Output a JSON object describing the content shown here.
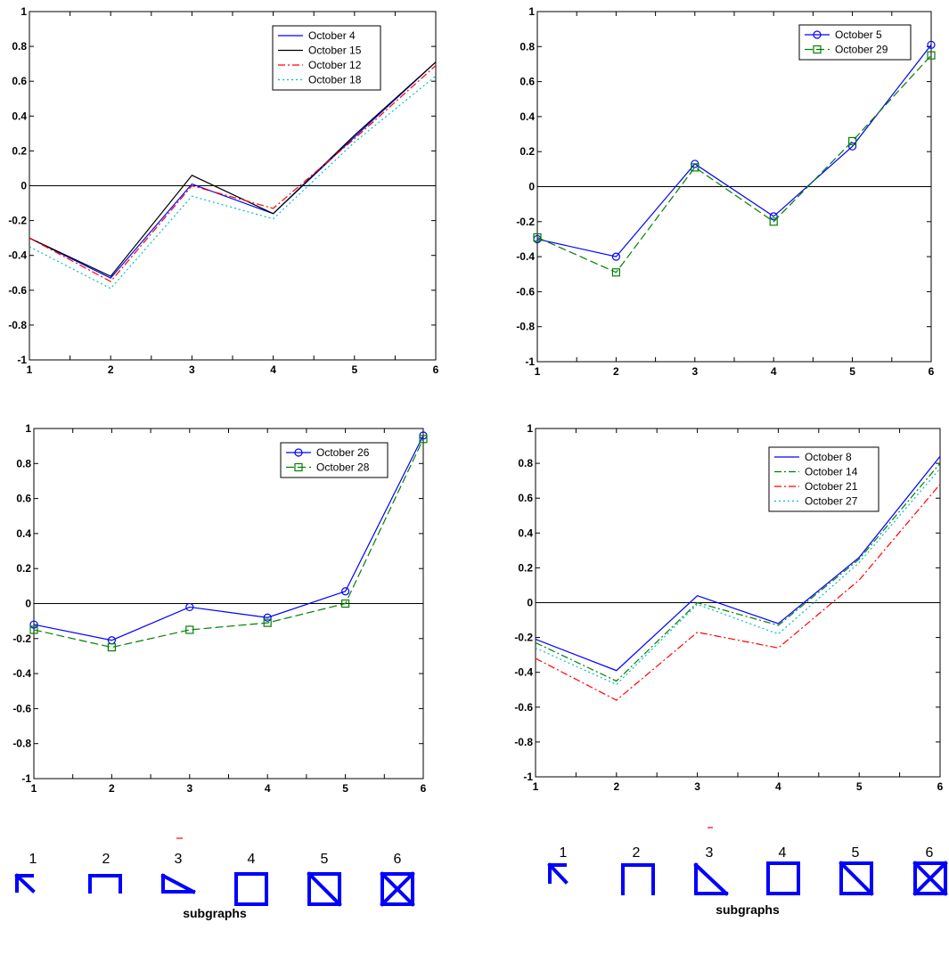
{
  "chart_data": [
    {
      "type": "line",
      "x": [
        1,
        2,
        3,
        4,
        5,
        6
      ],
      "xlim": [
        1,
        6
      ],
      "ylim": [
        -1,
        1
      ],
      "yticks": [
        "1",
        "0.8",
        "0.6",
        "0.4",
        "0.2",
        "0",
        "-0.2",
        "-0.4",
        "-0.6",
        "-0.8",
        "-1"
      ],
      "xticks": [
        "1",
        "2",
        "3",
        "4",
        "5",
        "6"
      ],
      "zero_line": true,
      "legend_position": "top-right",
      "series": [
        {
          "name": "October 4",
          "values": [
            -0.3,
            -0.53,
            0.01,
            -0.16,
            0.28,
            0.71
          ],
          "color": "#0000ff",
          "style": "solid",
          "marker": "none"
        },
        {
          "name": "October 15",
          "values": [
            -0.3,
            -0.52,
            0.06,
            -0.16,
            0.29,
            0.71
          ],
          "color": "#000000",
          "style": "solid",
          "marker": "none"
        },
        {
          "name": "October 12",
          "values": [
            -0.3,
            -0.55,
            0.0,
            -0.13,
            0.27,
            0.69
          ],
          "color": "#ff0000",
          "style": "dashdot",
          "marker": "none"
        },
        {
          "name": "October 18",
          "values": [
            -0.35,
            -0.59,
            -0.06,
            -0.19,
            0.25,
            0.63
          ],
          "color": "#00bfbf",
          "style": "dotted",
          "marker": "none"
        }
      ]
    },
    {
      "type": "line",
      "x": [
        1,
        2,
        3,
        4,
        5,
        6
      ],
      "xlim": [
        1,
        6
      ],
      "ylim": [
        -1,
        1
      ],
      "yticks": [
        "1",
        "0.8",
        "0.6",
        "0.4",
        "0.2",
        "0",
        "-0.2",
        "-0.4",
        "-0.6",
        "-0.8",
        "-1"
      ],
      "xticks": [
        "1",
        "2",
        "3",
        "4",
        "5",
        "6"
      ],
      "zero_line": true,
      "legend_position": "top-right",
      "series": [
        {
          "name": "October 5",
          "values": [
            -0.3,
            -0.4,
            0.13,
            -0.17,
            0.23,
            0.81
          ],
          "color": "#0000ff",
          "style": "solid",
          "marker": "circle"
        },
        {
          "name": "October 29",
          "values": [
            -0.29,
            -0.49,
            0.11,
            -0.2,
            0.26,
            0.75
          ],
          "color": "#008000",
          "style": "dashed",
          "marker": "square"
        }
      ]
    },
    {
      "type": "line",
      "x": [
        1,
        2,
        3,
        4,
        5,
        6
      ],
      "xlim": [
        1,
        6
      ],
      "ylim": [
        -1,
        1
      ],
      "yticks": [
        "1",
        "0.8",
        "0.6",
        "0.4",
        "0.2",
        "0",
        "-0.2",
        "-0.4",
        "-0.6",
        "-0.8",
        "-1"
      ],
      "xticks": [
        "1",
        "2",
        "3",
        "4",
        "5",
        "6"
      ],
      "zero_line": true,
      "legend_position": "top-right",
      "series": [
        {
          "name": "October 26",
          "values": [
            -0.12,
            -0.21,
            -0.02,
            -0.08,
            0.07,
            0.96
          ],
          "color": "#0000ff",
          "style": "solid",
          "marker": "circle"
        },
        {
          "name": "October 28",
          "values": [
            -0.15,
            -0.25,
            -0.15,
            -0.11,
            0.0,
            0.94
          ],
          "color": "#008000",
          "style": "dashed",
          "marker": "square"
        }
      ]
    },
    {
      "type": "line",
      "x": [
        1,
        2,
        3,
        4,
        5,
        6
      ],
      "xlim": [
        1,
        6
      ],
      "ylim": [
        -1,
        1
      ],
      "yticks": [
        "1",
        "0.8",
        "0.6",
        "0.4",
        "0.2",
        "0",
        "-0.2",
        "-0.4",
        "-0.6",
        "-0.8",
        "-1"
      ],
      "xticks": [
        "1",
        "2",
        "3",
        "4",
        "5",
        "6"
      ],
      "zero_line": true,
      "legend_position": "top-right",
      "series": [
        {
          "name": "October 8",
          "values": [
            -0.21,
            -0.39,
            0.04,
            -0.12,
            0.26,
            0.84
          ],
          "color": "#0000ff",
          "style": "solid",
          "marker": "none"
        },
        {
          "name": "October 14",
          "values": [
            -0.23,
            -0.45,
            0.0,
            -0.13,
            0.25,
            0.8
          ],
          "color": "#008000",
          "style": "dashdot",
          "marker": "none"
        },
        {
          "name": "October 21",
          "values": [
            -0.32,
            -0.56,
            -0.17,
            -0.26,
            0.13,
            0.68
          ],
          "color": "#ff0000",
          "style": "dashdot",
          "marker": "none"
        },
        {
          "name": "October 27",
          "values": [
            -0.26,
            -0.47,
            -0.01,
            -0.18,
            0.23,
            0.77
          ],
          "color": "#00bfbf",
          "style": "dotted",
          "marker": "none"
        }
      ]
    }
  ],
  "subgraphs": {
    "numbers": [
      "1",
      "2",
      "3",
      "4",
      "5",
      "6"
    ],
    "caption": "subgraphs",
    "icon_names": [
      "arrow-corner-icon",
      "open-square-icon",
      "square-diagonal-partial-icon",
      "square-icon",
      "square-diagonal-icon",
      "square-cross-icon"
    ],
    "color": "#0000ff"
  }
}
